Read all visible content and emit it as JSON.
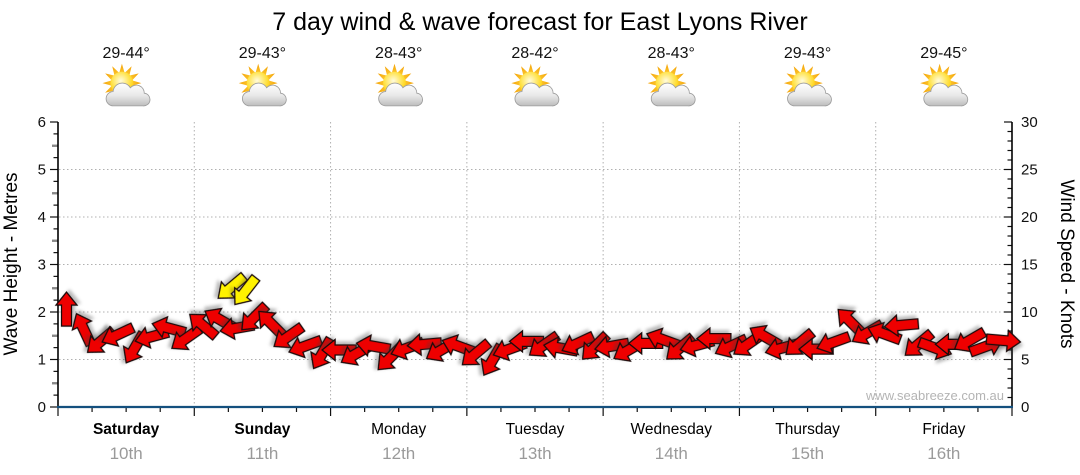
{
  "title": "7 day wind & wave forecast for East Lyons River",
  "watermark": "www.seabreeze.com.au",
  "colors": {
    "arrow_red": "#EE0000",
    "arrow_yellow": "#FFF200",
    "grid": "#b0b0b0",
    "axis_bottom_blue": "#14507E",
    "date_gray": "#9a9a9a",
    "watermark_gray": "#b4b4b4"
  },
  "forecast": {
    "days": [
      {
        "name": "Saturday",
        "date": "10th",
        "temp": "29-44°",
        "weekend": true,
        "icon": "sun-cloud-icon"
      },
      {
        "name": "Sunday",
        "date": "11th",
        "temp": "29-43°",
        "weekend": true,
        "icon": "sun-cloud-icon"
      },
      {
        "name": "Monday",
        "date": "12th",
        "temp": "28-43°",
        "weekend": false,
        "icon": "sun-cloud-icon"
      },
      {
        "name": "Tuesday",
        "date": "13th",
        "temp": "28-42°",
        "weekend": false,
        "icon": "sun-cloud-icon"
      },
      {
        "name": "Wednesday",
        "date": "14th",
        "temp": "28-43°",
        "weekend": false,
        "icon": "sun-cloud-icon"
      },
      {
        "name": "Thursday",
        "date": "15th",
        "temp": "29-43°",
        "weekend": false,
        "icon": "sun-cloud-icon"
      },
      {
        "name": "Friday",
        "date": "16th",
        "temp": "29-45°",
        "weekend": false,
        "icon": "sun-cloud-icon"
      }
    ]
  },
  "chart_data": {
    "type": "scatter",
    "subtype": "wind-direction-arrows",
    "title": "7 day wind & wave forecast for East Lyons River",
    "y_axis_left": {
      "label": "Wave Height - Metres",
      "range": [
        0,
        6
      ],
      "ticks": [
        0,
        1,
        2,
        3,
        4,
        5,
        6
      ]
    },
    "y_axis_right": {
      "label": "Wind Speed - Knots",
      "range": [
        0,
        30
      ],
      "ticks": [
        0,
        5,
        10,
        15,
        20,
        25,
        30
      ]
    },
    "x_axis": {
      "categories": [
        "Saturday",
        "Sunday",
        "Monday",
        "Tuesday",
        "Wednesday",
        "Thursday",
        "Friday"
      ],
      "dates": [
        "10th",
        "11th",
        "12th",
        "13th",
        "14th",
        "15th",
        "16th"
      ],
      "hours_total": 168,
      "grid": "dotted-at-day-boundaries"
    },
    "legend": "none",
    "series": [
      {
        "name": "wind-speed-direction",
        "marker": "block-arrow",
        "format": [
          "hour",
          "knots",
          "direction_deg_screen",
          "color"
        ],
        "points": [
          [
            1.5,
            10.3,
            -90
          ],
          [
            4.5,
            8.2,
            -115
          ],
          [
            7.5,
            6.9,
            140
          ],
          [
            10.5,
            7.6,
            155
          ],
          [
            13.5,
            6.2,
            120
          ],
          [
            16.5,
            7.4,
            165
          ],
          [
            19.5,
            8.3,
            -165
          ],
          [
            22.5,
            7.2,
            145
          ],
          [
            25.5,
            8.6,
            -140
          ],
          [
            28.5,
            9.2,
            -150
          ],
          [
            30.5,
            12.6,
            140,
            "yellow"
          ],
          [
            33,
            12.2,
            128,
            "yellow"
          ],
          [
            31.5,
            8.3,
            170
          ],
          [
            34.5,
            9.4,
            135
          ],
          [
            37.5,
            8.8,
            -135
          ],
          [
            40.5,
            7.4,
            145
          ],
          [
            43.5,
            6.4,
            160
          ],
          [
            46.5,
            5.6,
            120
          ],
          [
            49.5,
            6.0,
            180
          ],
          [
            52.5,
            5.6,
            150
          ],
          [
            55.5,
            6.4,
            -170
          ],
          [
            58.5,
            5.2,
            135
          ],
          [
            61.5,
            6.2,
            160
          ],
          [
            64.5,
            6.6,
            175
          ],
          [
            67.5,
            6.0,
            150
          ],
          [
            70.5,
            6.4,
            -160
          ],
          [
            73.5,
            5.6,
            140
          ],
          [
            76.5,
            4.9,
            120
          ],
          [
            79.5,
            6.1,
            160
          ],
          [
            82.5,
            6.9,
            180
          ],
          [
            85.5,
            6.5,
            145
          ],
          [
            88.5,
            6.2,
            -170
          ],
          [
            91.5,
            6.7,
            155
          ],
          [
            94.5,
            6.3,
            135
          ],
          [
            97.5,
            6.4,
            170
          ],
          [
            100.5,
            6.0,
            150
          ],
          [
            103.5,
            6.7,
            180
          ],
          [
            106.5,
            7.1,
            -160
          ],
          [
            109.5,
            6.2,
            140
          ],
          [
            112.5,
            6.5,
            165
          ],
          [
            115.5,
            7.2,
            180
          ],
          [
            118.5,
            6.4,
            155
          ],
          [
            121.5,
            6.6,
            145
          ],
          [
            124.5,
            7.4,
            -150
          ],
          [
            127.5,
            6.2,
            165
          ],
          [
            130.5,
            6.7,
            140
          ],
          [
            133.5,
            6.1,
            180
          ],
          [
            136.5,
            6.8,
            160
          ],
          [
            139.5,
            9.0,
            -135
          ],
          [
            142.5,
            7.8,
            150
          ],
          [
            145.5,
            7.7,
            -160
          ],
          [
            148.5,
            8.6,
            175
          ],
          [
            151.5,
            6.6,
            140
          ],
          [
            154.5,
            6.2,
            20
          ],
          [
            157.5,
            6.6,
            180
          ],
          [
            160.5,
            7.0,
            150
          ],
          [
            163.5,
            6.4,
            -20
          ],
          [
            166.5,
            7.0,
            5
          ]
        ]
      }
    ]
  }
}
